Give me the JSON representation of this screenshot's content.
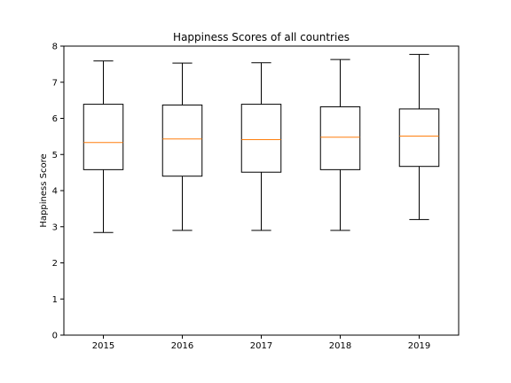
{
  "chart_data": {
    "type": "boxplot",
    "title": "Happiness Scores of all countries",
    "xlabel": "",
    "ylabel": "Happiness Score",
    "ylim": [
      0,
      8
    ],
    "yticks": [
      "0",
      "1",
      "2",
      "3",
      "4",
      "5",
      "6",
      "7",
      "8"
    ],
    "grid": false,
    "categories": [
      "2015",
      "2016",
      "2017",
      "2018",
      "2019"
    ],
    "boxes": [
      {
        "label": "2015",
        "whisker_low": 2.84,
        "q1": 4.58,
        "median": 5.33,
        "q3": 6.39,
        "whisker_high": 7.59
      },
      {
        "label": "2016",
        "whisker_low": 2.9,
        "q1": 4.4,
        "median": 5.43,
        "q3": 6.37,
        "whisker_high": 7.53
      },
      {
        "label": "2017",
        "whisker_low": 2.9,
        "q1": 4.51,
        "median": 5.41,
        "q3": 6.39,
        "whisker_high": 7.54
      },
      {
        "label": "2018",
        "whisker_low": 2.9,
        "q1": 4.58,
        "median": 5.48,
        "q3": 6.32,
        "whisker_high": 7.63
      },
      {
        "label": "2019",
        "whisker_low": 3.2,
        "q1": 4.67,
        "median": 5.51,
        "q3": 6.26,
        "whisker_high": 7.77
      }
    ],
    "colors": {
      "box": "#000000",
      "median": "#ff7f0e",
      "axes": "#000000"
    }
  }
}
